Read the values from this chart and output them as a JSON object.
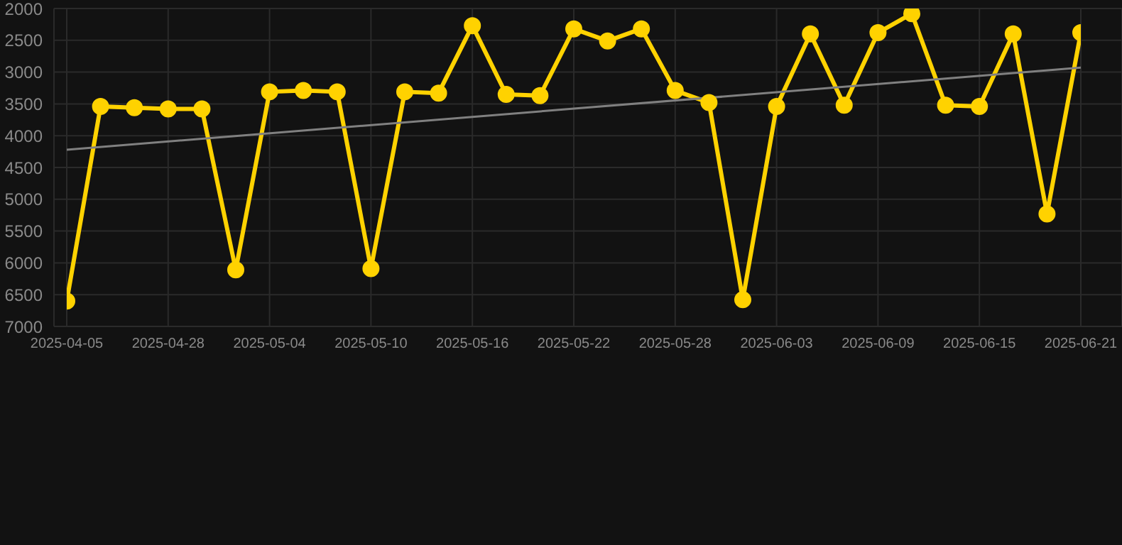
{
  "chart_data": {
    "type": "line",
    "categories": [
      "2025-04-05",
      null,
      null,
      "2025-04-28",
      null,
      null,
      "2025-05-04",
      null,
      null,
      "2025-05-10",
      null,
      null,
      "2025-05-16",
      null,
      null,
      "2025-05-22",
      null,
      null,
      "2025-05-28",
      null,
      null,
      "2025-06-03",
      null,
      null,
      "2025-06-09",
      null,
      null,
      "2025-06-15",
      null,
      null,
      "2025-06-21"
    ],
    "series": [
      {
        "color": "#ffd200",
        "values": [
          6600,
          3540,
          3560,
          3580,
          3580,
          6110,
          3310,
          3290,
          3310,
          6090,
          3310,
          3330,
          2270,
          3350,
          3370,
          2320,
          2510,
          2320,
          3290,
          3480,
          6580,
          3540,
          2400,
          3520,
          2380,
          2080,
          3520,
          3540,
          2400,
          5230,
          2380
        ]
      },
      {
        "type": "line",
        "color": "#808080",
        "values": [
          4220,
          null,
          null,
          null,
          null,
          null,
          null,
          null,
          null,
          null,
          null,
          null,
          null,
          null,
          null,
          null,
          null,
          null,
          null,
          null,
          null,
          null,
          null,
          null,
          null,
          null,
          null,
          null,
          null,
          null,
          2930
        ],
        "marker": "none"
      }
    ],
    "ylim": [
      7000,
      2000
    ],
    "yticks": [
      2000,
      2500,
      3000,
      3500,
      4000,
      4500,
      5000,
      5500,
      6000,
      6500,
      7000
    ],
    "grid": true,
    "marker": "circle"
  }
}
